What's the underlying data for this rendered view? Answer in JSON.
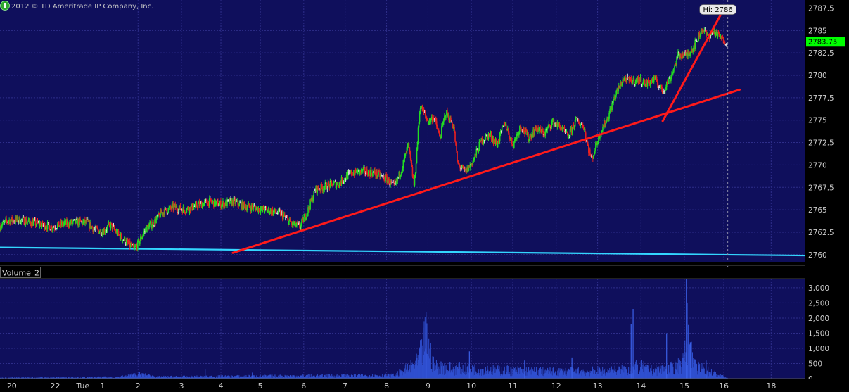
{
  "copyright": "2012 © TD Ameritrade IP Company, Inc.",
  "info_icon": "i",
  "colors": {
    "background": "#0f0f5c",
    "grid": "#2e2e8a",
    "candle_up": "#22dd22",
    "candle_down": "#e82020",
    "candle_neutral": "#dddddd",
    "volume": "#2f4fcf",
    "trend_red": "#ff1a1a",
    "trend_cyan": "#33d6ff",
    "last_price_bg": "#00ff00",
    "axis_text": "#cccccc"
  },
  "volume_panel": {
    "label": "Volume",
    "period": "2"
  },
  "chart_data": [
    {
      "type": "candlestick",
      "title": "",
      "y_ticks": [
        "2760",
        "2762.5",
        "2765",
        "2767.5",
        "2770",
        "2772.5",
        "2775",
        "2777.5",
        "2780",
        "2782.5",
        "2785",
        "2787.5"
      ],
      "ylim": [
        2759.2,
        2788.4
      ],
      "x_ticks": [
        {
          "label": "20",
          "pos": 0.3
        },
        {
          "label": "22",
          "pos": 1.4
        },
        {
          "label": "Tue",
          "pos": 2.1
        },
        {
          "label": "1",
          "pos": 2.6
        },
        {
          "label": "2",
          "pos": 3.5
        },
        {
          "label": "3",
          "pos": 4.6
        },
        {
          "label": "4",
          "pos": 5.6
        },
        {
          "label": "5",
          "pos": 6.6
        },
        {
          "label": "6",
          "pos": 7.7
        },
        {
          "label": "7",
          "pos": 8.75
        },
        {
          "label": "8",
          "pos": 9.8
        },
        {
          "label": "9",
          "pos": 10.85
        },
        {
          "label": "10",
          "pos": 11.95
        },
        {
          "label": "11",
          "pos": 13.0
        },
        {
          "label": "12",
          "pos": 14.1
        },
        {
          "label": "13",
          "pos": 15.15
        },
        {
          "label": "14",
          "pos": 16.25
        },
        {
          "label": "15",
          "pos": 17.35
        },
        {
          "label": "16",
          "pos": 18.35
        },
        {
          "label": "18",
          "pos": 19.55
        }
      ],
      "xlim": [
        0,
        20.4
      ],
      "vertical_gridlines": [
        3.5,
        4.6,
        5.6,
        6.6,
        7.7,
        8.75,
        9.8,
        10.85,
        11.95,
        13.0,
        14.1,
        15.15,
        16.25,
        17.35,
        18.35,
        19.55
      ],
      "price_path": [
        [
          0.0,
          2763.2
        ],
        [
          0.2,
          2763.8
        ],
        [
          0.5,
          2763.9
        ],
        [
          0.8,
          2763.6
        ],
        [
          1.0,
          2763.4
        ],
        [
          1.3,
          2763.1
        ],
        [
          1.6,
          2763.4
        ],
        [
          1.9,
          2763.6
        ],
        [
          2.2,
          2763.6
        ],
        [
          2.4,
          2762.8
        ],
        [
          2.6,
          2762.6
        ],
        [
          2.8,
          2763.3
        ],
        [
          3.0,
          2762.2
        ],
        [
          3.2,
          2761.4
        ],
        [
          3.4,
          2760.6
        ],
        [
          3.5,
          2761.2
        ],
        [
          3.7,
          2762.9
        ],
        [
          3.9,
          2763.6
        ],
        [
          4.1,
          2764.7
        ],
        [
          4.4,
          2765.3
        ],
        [
          4.7,
          2765.0
        ],
        [
          5.0,
          2765.5
        ],
        [
          5.3,
          2765.9
        ],
        [
          5.6,
          2765.6
        ],
        [
          5.9,
          2765.9
        ],
        [
          6.2,
          2765.4
        ],
        [
          6.5,
          2765.2
        ],
        [
          6.8,
          2764.9
        ],
        [
          7.1,
          2764.6
        ],
        [
          7.4,
          2763.4
        ],
        [
          7.6,
          2763.1
        ],
        [
          7.8,
          2764.9
        ],
        [
          8.0,
          2767.3
        ],
        [
          8.3,
          2767.7
        ],
        [
          8.6,
          2768.0
        ],
        [
          8.9,
          2769.1
        ],
        [
          9.2,
          2769.3
        ],
        [
          9.5,
          2769.1
        ],
        [
          9.8,
          2768.4
        ],
        [
          10.0,
          2767.5
        ],
        [
          10.2,
          2769.8
        ],
        [
          10.35,
          2772.2
        ],
        [
          10.5,
          2767.6
        ],
        [
          10.65,
          2776.7
        ],
        [
          10.85,
          2774.8
        ],
        [
          11.0,
          2775.4
        ],
        [
          11.15,
          2773.0
        ],
        [
          11.3,
          2775.9
        ],
        [
          11.5,
          2774.3
        ],
        [
          11.6,
          2770.1
        ],
        [
          11.8,
          2769.2
        ],
        [
          12.0,
          2770.5
        ],
        [
          12.2,
          2772.7
        ],
        [
          12.4,
          2773.4
        ],
        [
          12.6,
          2772.3
        ],
        [
          12.8,
          2774.7
        ],
        [
          13.0,
          2772.2
        ],
        [
          13.2,
          2774.4
        ],
        [
          13.4,
          2773.0
        ],
        [
          13.6,
          2774.1
        ],
        [
          13.8,
          2773.5
        ],
        [
          14.0,
          2774.8
        ],
        [
          14.2,
          2774.3
        ],
        [
          14.4,
          2773.1
        ],
        [
          14.6,
          2775.0
        ],
        [
          14.8,
          2774.3
        ],
        [
          14.9,
          2772.1
        ],
        [
          15.0,
          2770.6
        ],
        [
          15.2,
          2773.5
        ],
        [
          15.4,
          2775.2
        ],
        [
          15.6,
          2777.8
        ],
        [
          15.8,
          2779.6
        ],
        [
          16.0,
          2779.3
        ],
        [
          16.2,
          2779.5
        ],
        [
          16.4,
          2779.1
        ],
        [
          16.6,
          2779.6
        ],
        [
          16.8,
          2778.2
        ],
        [
          17.0,
          2779.8
        ],
        [
          17.2,
          2782.3
        ],
        [
          17.4,
          2782.2
        ],
        [
          17.6,
          2783.3
        ],
        [
          17.8,
          2785.2
        ],
        [
          17.95,
          2784.3
        ],
        [
          18.1,
          2784.9
        ],
        [
          18.3,
          2784.0
        ],
        [
          18.45,
          2783.75
        ]
      ],
      "high_label": "Hi: 2786",
      "high": {
        "x": 18.2,
        "y": 2786
      },
      "last_price": "2783.75",
      "last_price_value": 2783.75,
      "current_time_x": 18.45,
      "trendlines": [
        {
          "color": "red",
          "x1": 5.9,
          "y1": 2760.2,
          "x2": 18.75,
          "y2": 2778.4
        },
        {
          "color": "red",
          "x1": 16.8,
          "y1": 2774.9,
          "x2": 18.3,
          "y2": 2787.0
        },
        {
          "color": "cyan",
          "x1": 0.0,
          "y1": 2760.8,
          "x2": 20.4,
          "y2": 2759.9
        }
      ]
    },
    {
      "type": "bar",
      "title": "Volume",
      "y_ticks": [
        "0",
        "500",
        "1,000",
        "1,500",
        "2,000",
        "2,500",
        "3,000"
      ],
      "ylim": [
        0,
        3300
      ],
      "xlim": [
        0,
        20.4
      ],
      "volume_profile": [
        [
          0.0,
          30
        ],
        [
          1.0,
          40
        ],
        [
          2.0,
          50
        ],
        [
          3.0,
          60
        ],
        [
          3.5,
          170
        ],
        [
          4.0,
          70
        ],
        [
          5.0,
          80
        ],
        [
          6.0,
          90
        ],
        [
          7.0,
          100
        ],
        [
          8.0,
          110
        ],
        [
          9.0,
          120
        ],
        [
          10.0,
          130
        ],
        [
          10.4,
          450
        ],
        [
          10.6,
          650
        ],
        [
          10.8,
          1700
        ],
        [
          11.0,
          500
        ],
        [
          11.5,
          400
        ],
        [
          12.0,
          380
        ],
        [
          12.5,
          350
        ],
        [
          13.0,
          330
        ],
        [
          13.5,
          300
        ],
        [
          14.0,
          290
        ],
        [
          14.5,
          280
        ],
        [
          15.0,
          300
        ],
        [
          15.5,
          320
        ],
        [
          16.0,
          380
        ],
        [
          16.2,
          500
        ],
        [
          16.5,
          330
        ],
        [
          17.0,
          400
        ],
        [
          17.3,
          600
        ],
        [
          17.45,
          1400
        ],
        [
          17.6,
          500
        ],
        [
          18.0,
          280
        ],
        [
          18.3,
          100
        ],
        [
          18.5,
          0
        ],
        [
          20.4,
          0
        ]
      ],
      "volume_spikes": [
        [
          5.2,
          300
        ],
        [
          6.4,
          200
        ],
        [
          10.8,
          2200
        ],
        [
          11.9,
          900
        ],
        [
          13.3,
          600
        ],
        [
          14.5,
          700
        ],
        [
          16.0,
          1800
        ],
        [
          16.05,
          2300
        ],
        [
          16.9,
          1500
        ],
        [
          17.4,
          3300
        ],
        [
          17.42,
          2500
        ],
        [
          17.5,
          1200
        ],
        [
          17.9,
          600
        ]
      ]
    }
  ]
}
